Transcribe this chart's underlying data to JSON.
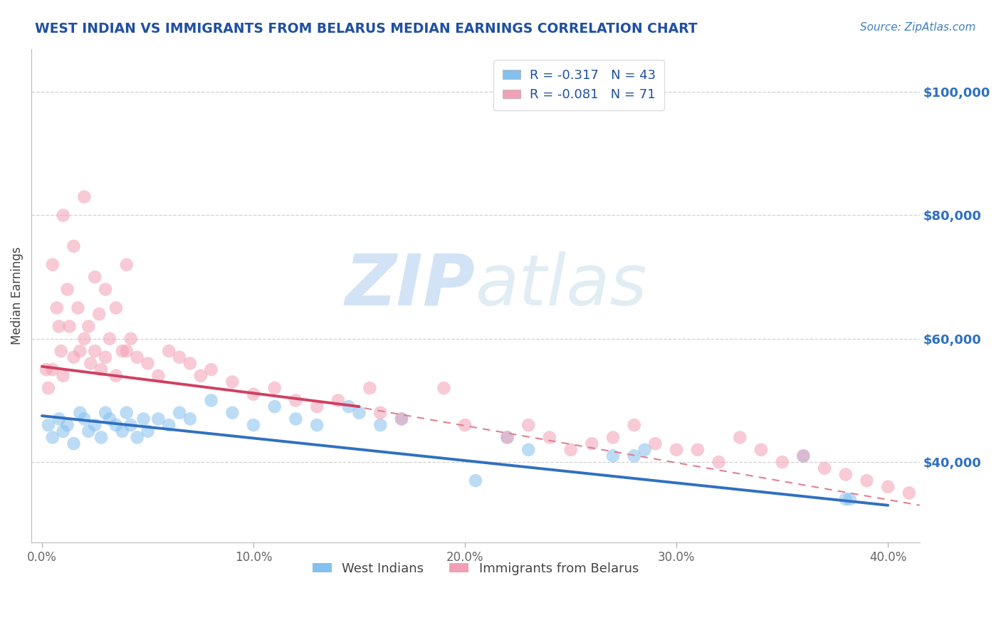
{
  "title": "WEST INDIAN VS IMMIGRANTS FROM BELARUS MEDIAN EARNINGS CORRELATION CHART",
  "source": "Source: ZipAtlas.com",
  "ylabel": "Median Earnings",
  "watermark_zip": "ZIP",
  "watermark_atlas": "atlas",
  "legend_blue_label": "West Indians",
  "legend_pink_label": "Immigrants from Belarus",
  "legend_blue_R": "R = -0.317",
  "legend_blue_N": "N = 43",
  "legend_pink_R": "R = -0.081",
  "legend_pink_N": "N = 71",
  "blue_color": "#85C0EE",
  "pink_color": "#F2A0B5",
  "trendline_blue": "#3070C0",
  "trendline_pink": "#D04060",
  "dashed_line_color": "#E08090",
  "title_color": "#2050A0",
  "source_color": "#4080C0",
  "legend_R_color": "#2050A0",
  "y_tick_labels": [
    "$40,000",
    "$60,000",
    "$80,000",
    "$100,000"
  ],
  "y_tick_values": [
    40000,
    60000,
    80000,
    100000
  ],
  "y_tick_color": "#3070C0",
  "x_tick_labels": [
    "0.0%",
    "10.0%",
    "20.0%",
    "30.0%",
    "40.0%"
  ],
  "x_tick_values": [
    0.0,
    10.0,
    20.0,
    30.0,
    40.0
  ],
  "ylim": [
    27000,
    107000
  ],
  "xlim": [
    -0.5,
    41.5
  ],
  "blue_x": [
    0.3,
    0.5,
    0.8,
    1.0,
    1.2,
    1.5,
    1.8,
    2.0,
    2.2,
    2.5,
    2.8,
    3.0,
    3.2,
    3.5,
    3.8,
    4.0,
    4.2,
    4.5,
    4.8,
    5.0,
    5.5,
    6.0,
    6.5,
    7.0,
    8.0,
    9.0,
    10.0,
    11.0,
    12.0,
    13.0,
    14.5,
    15.0,
    16.0,
    17.0,
    20.5,
    22.0,
    23.0,
    27.0,
    28.0,
    28.5,
    36.0,
    38.0,
    38.2
  ],
  "blue_y": [
    46000,
    44000,
    47000,
    45000,
    46000,
    43000,
    48000,
    47000,
    45000,
    46000,
    44000,
    48000,
    47000,
    46000,
    45000,
    48000,
    46000,
    44000,
    47000,
    45000,
    47000,
    46000,
    48000,
    47000,
    50000,
    48000,
    46000,
    49000,
    47000,
    46000,
    49000,
    48000,
    46000,
    47000,
    37000,
    44000,
    42000,
    41000,
    41000,
    42000,
    41000,
    34000,
    34000
  ],
  "pink_x": [
    0.2,
    0.3,
    0.5,
    0.5,
    0.7,
    0.8,
    0.9,
    1.0,
    1.0,
    1.2,
    1.3,
    1.5,
    1.5,
    1.7,
    1.8,
    2.0,
    2.0,
    2.2,
    2.3,
    2.5,
    2.5,
    2.7,
    2.8,
    3.0,
    3.0,
    3.2,
    3.5,
    3.5,
    3.8,
    4.0,
    4.0,
    4.2,
    4.5,
    5.0,
    5.5,
    6.0,
    6.5,
    7.0,
    7.5,
    8.0,
    9.0,
    10.0,
    11.0,
    12.0,
    13.0,
    14.0,
    15.5,
    16.0,
    17.0,
    19.0,
    20.0,
    22.0,
    23.0,
    24.0,
    25.0,
    26.0,
    27.0,
    28.0,
    29.0,
    30.0,
    31.0,
    32.0,
    33.0,
    34.0,
    35.0,
    36.0,
    37.0,
    38.0,
    39.0,
    40.0,
    41.0
  ],
  "pink_y": [
    55000,
    52000,
    72000,
    55000,
    65000,
    62000,
    58000,
    80000,
    54000,
    68000,
    62000,
    75000,
    57000,
    65000,
    58000,
    83000,
    60000,
    62000,
    56000,
    70000,
    58000,
    64000,
    55000,
    68000,
    57000,
    60000,
    65000,
    54000,
    58000,
    72000,
    58000,
    60000,
    57000,
    56000,
    54000,
    58000,
    57000,
    56000,
    54000,
    55000,
    53000,
    51000,
    52000,
    50000,
    49000,
    50000,
    52000,
    48000,
    47000,
    52000,
    46000,
    44000,
    46000,
    44000,
    42000,
    43000,
    44000,
    46000,
    43000,
    42000,
    42000,
    40000,
    44000,
    42000,
    40000,
    41000,
    39000,
    38000,
    37000,
    36000,
    35000
  ],
  "blue_trend_x0": 0.0,
  "blue_trend_y0": 47500,
  "blue_trend_x1": 40.0,
  "blue_trend_y1": 33000,
  "pink_trend_x0": 0.0,
  "pink_trend_y0": 55500,
  "pink_trend_x1": 15.0,
  "pink_trend_y1": 49000,
  "pink_dash_x0": 14.0,
  "pink_dash_y0": 49500,
  "pink_dash_x1": 41.5,
  "pink_dash_y1": 33000
}
